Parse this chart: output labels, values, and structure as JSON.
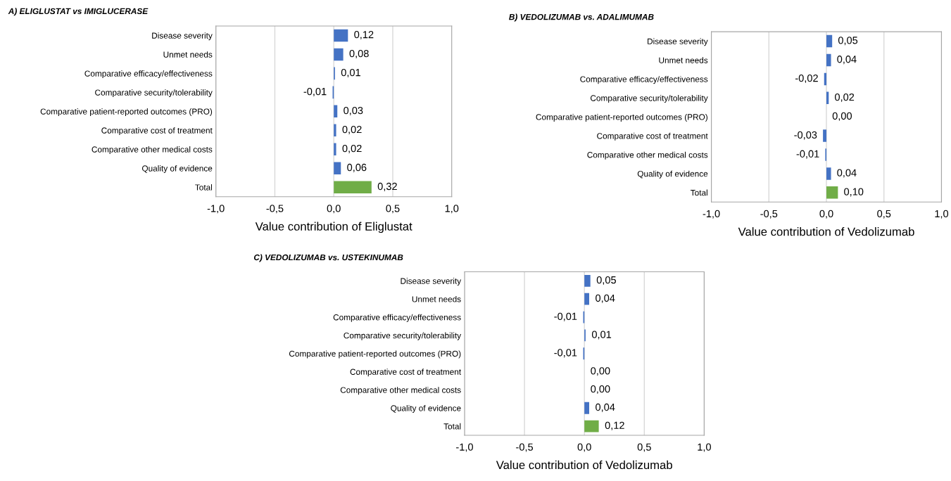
{
  "chart_data": [
    {
      "type": "bar",
      "orientation": "horizontal",
      "title": "A) ELIGLUSTAT vs IMIGLUCERASE",
      "xlabel": "Value contribution of Eliglustat",
      "categories": [
        "Disease severity",
        "Unmet needs",
        "Comparative efficacy/effectiveness",
        "Comparative security/tolerability",
        "Comparative patient-reported outcomes (PRO)",
        "Comparative cost of treatment",
        "Comparative other medical costs",
        "Quality of evidence",
        "Total"
      ],
      "values": [
        0.12,
        0.08,
        0.01,
        -0.01,
        0.03,
        0.02,
        0.02,
        0.06,
        0.32
      ],
      "colors": [
        "#4472c4",
        "#4472c4",
        "#4472c4",
        "#4472c4",
        "#4472c4",
        "#4472c4",
        "#4472c4",
        "#4472c4",
        "#70ad47"
      ],
      "value_labels": [
        "0,12",
        "0,08",
        "0,01",
        "-0,01",
        "0,03",
        "0,02",
        "0,02",
        "0,06",
        "0,32"
      ],
      "xlim": [
        -1.0,
        1.0
      ],
      "xticks": [
        {
          "value": -1.0,
          "label": "-1,0"
        },
        {
          "value": -0.5,
          "label": "-0,5"
        },
        {
          "value": 0.0,
          "label": "0,0"
        },
        {
          "value": 0.5,
          "label": "0,5"
        },
        {
          "value": 1.0,
          "label": "1,0"
        }
      ],
      "grid": "x"
    },
    {
      "type": "bar",
      "orientation": "horizontal",
      "title": "B) VEDOLIZUMAB vs. ADALIMUMAB",
      "xlabel": "Value contribution of Vedolizumab",
      "categories": [
        "Disease severity",
        "Unmet needs",
        "Comparative efficacy/effectiveness",
        "Comparative security/tolerability",
        "Comparative patient-reported outcomes (PRO)",
        "Comparative cost of treatment",
        "Comparative other medical costs",
        "Quality of evidence",
        "Total"
      ],
      "values": [
        0.05,
        0.04,
        -0.02,
        0.02,
        0.0,
        -0.03,
        -0.01,
        0.04,
        0.1
      ],
      "colors": [
        "#4472c4",
        "#4472c4",
        "#4472c4",
        "#4472c4",
        "#4472c4",
        "#4472c4",
        "#4472c4",
        "#4472c4",
        "#70ad47"
      ],
      "value_labels": [
        "0,05",
        "0,04",
        "-0,02",
        "0,02",
        "0,00",
        "-0,03",
        "-0,01",
        "0,04",
        "0,10"
      ],
      "xlim": [
        -1.0,
        1.0
      ],
      "xticks": [
        {
          "value": -1.0,
          "label": "-1,0"
        },
        {
          "value": -0.5,
          "label": "-0,5"
        },
        {
          "value": 0.0,
          "label": "0,0"
        },
        {
          "value": 0.5,
          "label": "0,5"
        },
        {
          "value": 1.0,
          "label": "1,0"
        }
      ],
      "grid": "x"
    },
    {
      "type": "bar",
      "orientation": "horizontal",
      "title": "C) VEDOLIZUMAB vs. USTEKINUMAB",
      "xlabel": "Value contribution of Vedolizumab",
      "categories": [
        "Disease severity",
        "Unmet needs",
        "Comparative efficacy/effectiveness",
        "Comparative security/tolerability",
        "Comparative patient-reported outcomes (PRO)",
        "Comparative cost of treatment",
        "Comparative other medical costs",
        "Quality of evidence",
        "Total"
      ],
      "values": [
        0.05,
        0.04,
        -0.01,
        0.01,
        -0.01,
        0.0,
        0.0,
        0.04,
        0.12
      ],
      "colors": [
        "#4472c4",
        "#4472c4",
        "#4472c4",
        "#4472c4",
        "#4472c4",
        "#4472c4",
        "#4472c4",
        "#4472c4",
        "#70ad47"
      ],
      "value_labels": [
        "0,05",
        "0,04",
        "-0,01",
        "0,01",
        "-0,01",
        "0,00",
        "0,00",
        "0,04",
        "0,12"
      ],
      "xlim": [
        -1.0,
        1.0
      ],
      "xticks": [
        {
          "value": -1.0,
          "label": "-1,0"
        },
        {
          "value": -0.5,
          "label": "-0,5"
        },
        {
          "value": 0.0,
          "label": "0,0"
        },
        {
          "value": 0.5,
          "label": "0,5"
        },
        {
          "value": 1.0,
          "label": "1,0"
        }
      ],
      "grid": "x"
    }
  ]
}
